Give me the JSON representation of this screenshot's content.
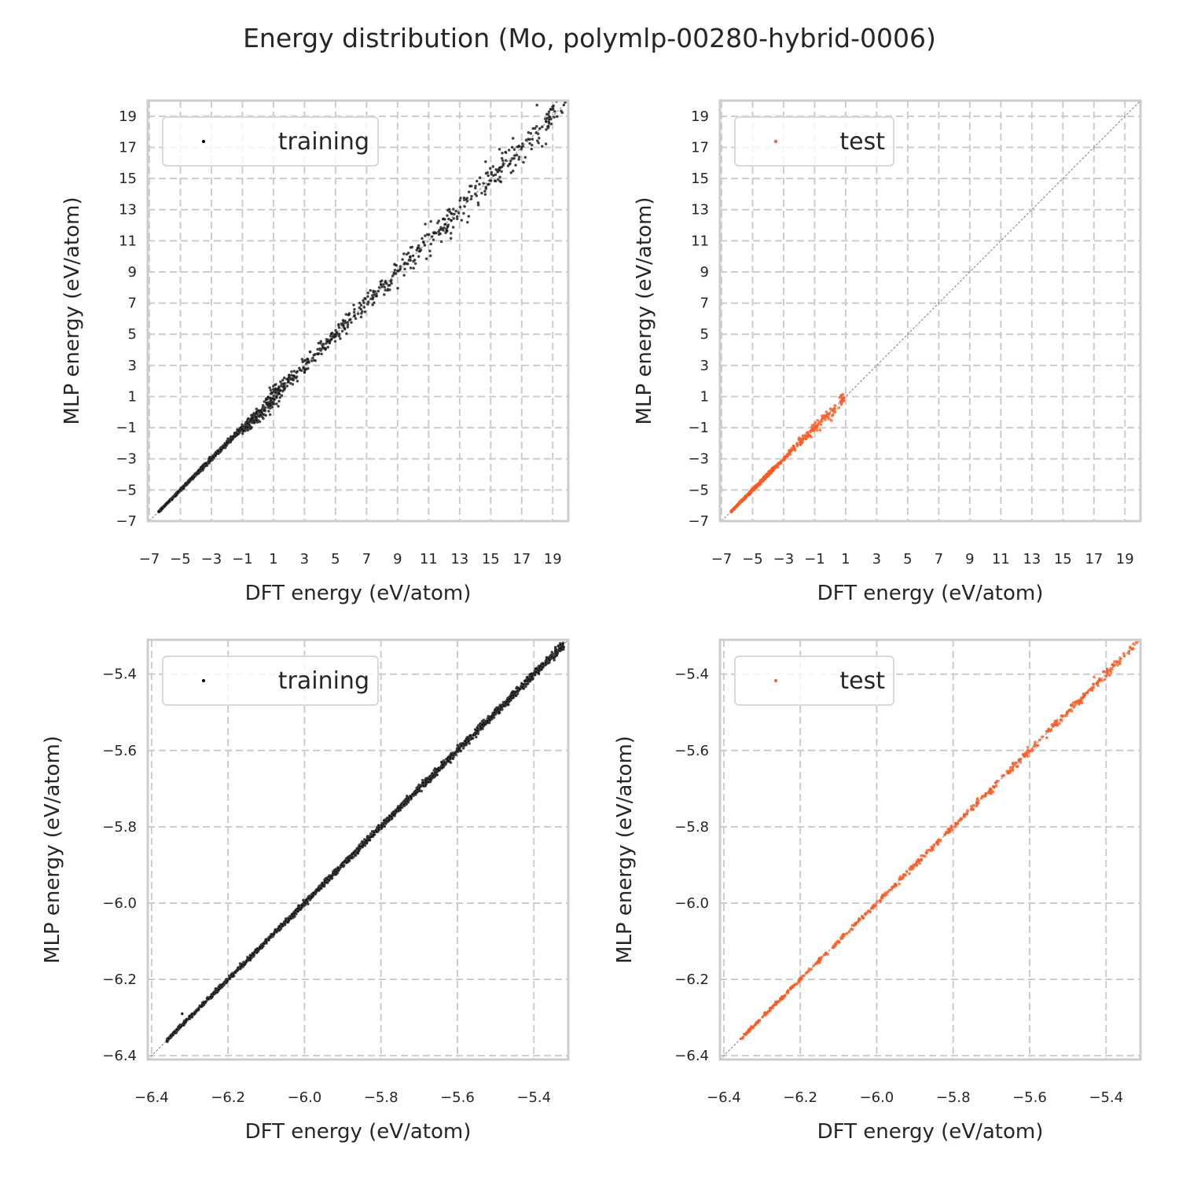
{
  "figure": {
    "title": "Energy distribution (Mo, polymlp-00280-hybrid-0006)",
    "background": "#ffffff",
    "grid_color": "#cccccc",
    "spine_color": "#cccccc",
    "diagonal_color": "#808080"
  },
  "chart_data": [
    {
      "type": "scatter",
      "panel": "top-left",
      "title": "",
      "xlabel": "DFT energy (eV/atom)",
      "ylabel": "MLP energy (eV/atom)",
      "xlim": [
        -7.1,
        20.0
      ],
      "ylim": [
        -7.0,
        20.0
      ],
      "xticks": [
        -7,
        -5,
        -3,
        -1,
        1,
        3,
        5,
        7,
        9,
        11,
        13,
        15,
        17,
        19
      ],
      "yticks": [
        -7,
        -5,
        -3,
        -1,
        1,
        3,
        5,
        7,
        9,
        11,
        13,
        15,
        17,
        19
      ],
      "xtick_labels": [
        "−7",
        "−5",
        "−3",
        "−1",
        "1",
        "3",
        "5",
        "7",
        "9",
        "11",
        "13",
        "15",
        "17",
        "19"
      ],
      "ytick_labels": [
        "−7",
        "−5",
        "−3",
        "−1",
        "1",
        "3",
        "5",
        "7",
        "9",
        "11",
        "13",
        "15",
        "17",
        "19"
      ],
      "grid": true,
      "legend": {
        "label": "training",
        "placement": "top-left"
      },
      "series": [
        {
          "name": "training",
          "color": "#000000",
          "x_range": [
            -6.36,
            19.8
          ],
          "description": "points clustered tightly on y=x, spread increasing above ~5 eV/atom",
          "scatter_sd_by_x": [
            [
              -6.4,
              0.02
            ],
            [
              -1,
              0.08
            ],
            [
              0.5,
              0.35
            ],
            [
              5,
              0.25
            ],
            [
              10,
              0.45
            ],
            [
              15,
              0.6
            ],
            [
              19.8,
              0.6
            ]
          ],
          "dense_cluster": {
            "x": [
              -1.0,
              0.8
            ],
            "y_offset": -0.3
          }
        }
      ],
      "reference_line": "y = x"
    },
    {
      "type": "scatter",
      "panel": "top-right",
      "title": "",
      "xlabel": "DFT energy (eV/atom)",
      "ylabel": "MLP energy (eV/atom)",
      "xlim": [
        -7.1,
        20.0
      ],
      "ylim": [
        -7.0,
        20.0
      ],
      "xticks": [
        -7,
        -5,
        -3,
        -1,
        1,
        3,
        5,
        7,
        9,
        11,
        13,
        15,
        17,
        19
      ],
      "yticks": [
        -7,
        -5,
        -3,
        -1,
        1,
        3,
        5,
        7,
        9,
        11,
        13,
        15,
        17,
        19
      ],
      "xtick_labels": [
        "−7",
        "−5",
        "−3",
        "−1",
        "1",
        "3",
        "5",
        "7",
        "9",
        "11",
        "13",
        "15",
        "17",
        "19"
      ],
      "ytick_labels": [
        "−7",
        "−5",
        "−3",
        "−1",
        "1",
        "3",
        "5",
        "7",
        "9",
        "11",
        "13",
        "15",
        "17",
        "19"
      ],
      "grid": true,
      "legend": {
        "label": "test",
        "placement": "top-left"
      },
      "series": [
        {
          "name": "test",
          "color": "#ff5a1f",
          "x_range": [
            -6.36,
            0.9
          ],
          "description": "points on y=x from -6.4 to ~0.9, slight scatter near 0",
          "scatter_sd_by_x": [
            [
              -6.4,
              0.02
            ],
            [
              -3,
              0.08
            ],
            [
              0,
              0.25
            ],
            [
              0.9,
              0.2
            ]
          ]
        }
      ],
      "reference_line": "y = x"
    },
    {
      "type": "scatter",
      "panel": "bottom-left",
      "title": "",
      "xlabel": "DFT energy (eV/atom)",
      "ylabel": "MLP energy (eV/atom)",
      "xlim": [
        -6.41,
        -5.31
      ],
      "ylim": [
        -6.41,
        -5.31
      ],
      "xticks": [
        -6.4,
        -6.2,
        -6.0,
        -5.8,
        -5.6,
        -5.4
      ],
      "yticks": [
        -6.4,
        -6.2,
        -6.0,
        -5.8,
        -5.6,
        -5.4
      ],
      "xtick_labels": [
        "−6.4",
        "−6.2",
        "−6.0",
        "−5.8",
        "−5.6",
        "−5.4"
      ],
      "ytick_labels": [
        "−6.4",
        "−6.2",
        "−6.0",
        "−5.8",
        "−5.6",
        "−5.4"
      ],
      "grid": true,
      "legend": {
        "label": "training",
        "placement": "top-left"
      },
      "series": [
        {
          "name": "training",
          "color": "#000000",
          "x_range": [
            -6.36,
            -5.32
          ],
          "description": "dense points along y=x",
          "scatter_sd_by_x": [
            [
              -6.36,
              0.002
            ],
            [
              -5.32,
              0.006
            ]
          ],
          "outlier": {
            "x": -6.32,
            "y": -6.29
          }
        }
      ],
      "reference_line": "y = x"
    },
    {
      "type": "scatter",
      "panel": "bottom-right",
      "title": "",
      "xlabel": "DFT energy (eV/atom)",
      "ylabel": "MLP energy (eV/atom)",
      "xlim": [
        -6.41,
        -5.31
      ],
      "ylim": [
        -6.41,
        -5.31
      ],
      "xticks": [
        -6.4,
        -6.2,
        -6.0,
        -5.8,
        -5.6,
        -5.4
      ],
      "yticks": [
        -6.4,
        -6.2,
        -6.0,
        -5.8,
        -5.6,
        -5.4
      ],
      "xtick_labels": [
        "−6.4",
        "−6.2",
        "−6.0",
        "−5.8",
        "−5.6",
        "−5.4"
      ],
      "ytick_labels": [
        "−6.4",
        "−6.2",
        "−6.0",
        "−5.8",
        "−5.6",
        "−5.4"
      ],
      "grid": true,
      "legend": {
        "label": "test",
        "placement": "top-left"
      },
      "series": [
        {
          "name": "test",
          "color": "#ff5a1f",
          "x_range": [
            -6.36,
            -5.32
          ],
          "description": "points along y=x",
          "scatter_sd_by_x": [
            [
              -6.36,
              0.002
            ],
            [
              -5.32,
              0.006
            ]
          ]
        }
      ],
      "reference_line": "y = x"
    }
  ]
}
